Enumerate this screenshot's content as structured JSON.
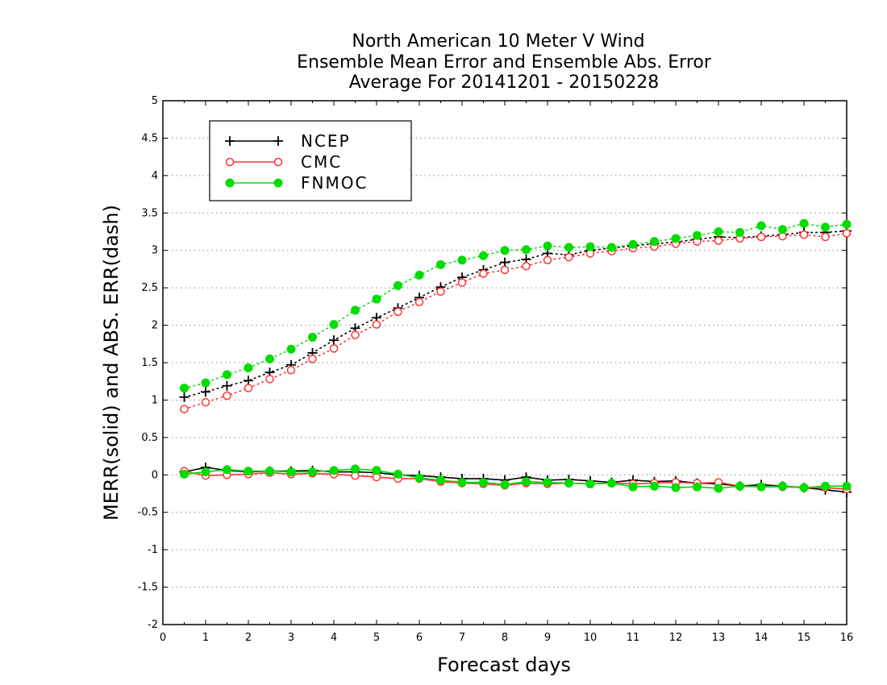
{
  "chart_data": {
    "type": "line",
    "title": [
      "North American 10 Meter V Wind",
      "Ensemble Mean Error and Ensemble Abs. Error",
      "Average For 20141201 - 20150228"
    ],
    "xlabel": "Forecast days",
    "ylabel": "MERR(solid) and ABS. ERR(dash)",
    "xlim": [
      0,
      16
    ],
    "ylim": [
      -2,
      5
    ],
    "xticks": [
      "0",
      "1",
      "2",
      "3",
      "4",
      "5",
      "6",
      "7",
      "8",
      "9",
      "10",
      "11",
      "12",
      "13",
      "14",
      "15",
      "16"
    ],
    "yticks": [
      "5",
      "4.5",
      "4",
      "3.5",
      "3",
      "2.5",
      "2",
      "1.5",
      "1",
      "0.5",
      "0",
      "-0.5",
      "-1",
      "-1.5",
      "-2"
    ],
    "grid": "dotted horizontal",
    "legend_position": "top-left",
    "x": [
      0.5,
      1,
      1.5,
      2,
      2.5,
      3,
      3.5,
      4,
      4.5,
      5,
      5.5,
      6,
      6.5,
      7,
      7.5,
      8,
      8.5,
      9,
      9.5,
      10,
      10.5,
      11,
      11.5,
      12,
      12.5,
      13,
      13.5,
      14,
      14.5,
      15,
      15.5,
      16
    ],
    "series": [
      {
        "name": "NCEP",
        "color": "#000000",
        "marker": "plus",
        "abs_err": [
          1.04,
          1.11,
          1.19,
          1.26,
          1.37,
          1.47,
          1.63,
          1.8,
          1.96,
          2.1,
          2.23,
          2.37,
          2.51,
          2.64,
          2.74,
          2.84,
          2.88,
          2.96,
          2.94,
          3.0,
          3.03,
          3.06,
          3.09,
          3.11,
          3.15,
          3.18,
          3.17,
          3.19,
          3.21,
          3.24,
          3.24,
          3.26
        ],
        "mean_err": [
          0.04,
          0.1,
          0.06,
          0.04,
          0.05,
          0.05,
          0.06,
          0.04,
          0.04,
          0.03,
          0.0,
          -0.01,
          -0.03,
          -0.05,
          -0.05,
          -0.07,
          -0.03,
          -0.07,
          -0.06,
          -0.08,
          -0.1,
          -0.07,
          -0.09,
          -0.08,
          -0.11,
          -0.12,
          -0.15,
          -0.13,
          -0.15,
          -0.17,
          -0.2,
          -0.23
        ]
      },
      {
        "name": "CMC",
        "color": "#ff3333",
        "marker": "circle-open",
        "abs_err": [
          0.88,
          0.97,
          1.06,
          1.16,
          1.28,
          1.4,
          1.55,
          1.69,
          1.87,
          2.01,
          2.18,
          2.31,
          2.45,
          2.57,
          2.69,
          2.74,
          2.79,
          2.87,
          2.91,
          2.96,
          2.99,
          3.03,
          3.05,
          3.09,
          3.12,
          3.13,
          3.16,
          3.18,
          3.19,
          3.21,
          3.18,
          3.23
        ],
        "mean_err": [
          0.05,
          -0.01,
          0.0,
          0.01,
          0.03,
          0.01,
          0.02,
          0.01,
          -0.01,
          -0.03,
          -0.05,
          -0.05,
          -0.09,
          -0.11,
          -0.12,
          -0.14,
          -0.11,
          -0.12,
          -0.11,
          -0.12,
          -0.11,
          -0.12,
          -0.11,
          -0.1,
          -0.11,
          -0.1,
          -0.15,
          -0.16,
          -0.16,
          -0.17,
          -0.17,
          -0.19
        ]
      },
      {
        "name": "FNMOC",
        "color": "#00dd00",
        "marker": "circle-filled",
        "abs_err": [
          1.16,
          1.23,
          1.34,
          1.43,
          1.55,
          1.68,
          1.84,
          2.01,
          2.2,
          2.35,
          2.53,
          2.67,
          2.81,
          2.87,
          2.93,
          3.0,
          3.01,
          3.06,
          3.04,
          3.05,
          3.04,
          3.08,
          3.12,
          3.16,
          3.2,
          3.25,
          3.24,
          3.33,
          3.28,
          3.36,
          3.31,
          3.35
        ],
        "mean_err": [
          0.01,
          0.04,
          0.07,
          0.05,
          0.05,
          0.04,
          0.04,
          0.06,
          0.08,
          0.06,
          0.01,
          -0.04,
          -0.07,
          -0.1,
          -0.1,
          -0.13,
          -0.09,
          -0.1,
          -0.11,
          -0.12,
          -0.11,
          -0.16,
          -0.15,
          -0.17,
          -0.16,
          -0.18,
          -0.15,
          -0.16,
          -0.15,
          -0.17,
          -0.15,
          -0.15
        ]
      }
    ]
  }
}
